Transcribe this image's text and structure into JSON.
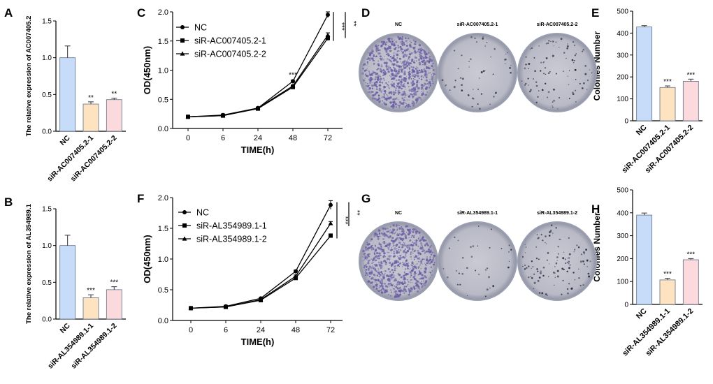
{
  "colors": {
    "nc": "#c6dcf8",
    "si1": "#fde3c0",
    "si2": "#fcd9dc",
    "barEdge": "#5f6f86",
    "plate": "#9aa0b2",
    "plateDots": "#6b5fa5"
  },
  "panel_letters": [
    "A",
    "B",
    "C",
    "D",
    "E",
    "F",
    "G",
    "H"
  ],
  "chart_data": [
    {
      "id": "A",
      "type": "bar",
      "ylabel": "The relative expression of AC007405.2",
      "categories": [
        "NC",
        "siR-AC007405.2-1",
        "siR-AC007405.2-2"
      ],
      "values": [
        1.0,
        0.37,
        0.43
      ],
      "errors": [
        0.16,
        0.03,
        0.02
      ],
      "annotations": [
        "",
        "**",
        "**"
      ],
      "ylim": [
        0,
        1.5
      ],
      "yticks": [
        "0.0",
        "0.5",
        "1.0",
        "1.5"
      ],
      "ytick_values": [
        0,
        0.5,
        1.0,
        1.5
      ]
    },
    {
      "id": "B",
      "type": "bar",
      "ylabel": "The relative expression of AL354989.1",
      "categories": [
        "NC",
        "siR-AL354989.1-1",
        "siR-AL354989.1-2"
      ],
      "values": [
        1.0,
        0.29,
        0.4
      ],
      "errors": [
        0.14,
        0.04,
        0.04
      ],
      "annotations": [
        "",
        "***",
        "***"
      ],
      "ylim": [
        0,
        1.5
      ],
      "yticks": [
        "0.0",
        "0.5",
        "1.0",
        "1.5"
      ],
      "ytick_values": [
        0,
        0.5,
        1.0,
        1.5
      ]
    },
    {
      "id": "C",
      "type": "line",
      "xlabel": "TIME(h)",
      "ylabel": "OD(450nm)",
      "x": [
        0,
        6,
        24,
        48,
        72
      ],
      "xticks": [
        "0",
        "6",
        "24",
        "48",
        "72"
      ],
      "series": [
        {
          "name": "NC",
          "marker": "circle",
          "values": [
            0.2,
            0.23,
            0.35,
            0.81,
            1.95
          ],
          "errors": [
            0.01,
            0.01,
            0.01,
            0.02,
            0.05
          ]
        },
        {
          "name": "siR-AC007405.2-1",
          "marker": "square",
          "values": [
            0.2,
            0.22,
            0.34,
            0.71,
            1.55
          ],
          "errors": [
            0.01,
            0.01,
            0.01,
            0.02,
            0.04
          ]
        },
        {
          "name": "siR-AC007405.2-2",
          "marker": "triangle",
          "values": [
            0.2,
            0.22,
            0.35,
            0.73,
            1.6
          ],
          "errors": [
            0.01,
            0.01,
            0.01,
            0.02,
            0.04
          ]
        }
      ],
      "ylim": [
        0,
        2.0
      ],
      "yticks": [
        "0.0",
        "0.5",
        "1.0",
        "1.5",
        "2.0"
      ],
      "ytick_values": [
        0,
        0.5,
        1.0,
        1.5,
        2.0
      ],
      "annotations": [
        {
          "text": "***",
          "x": 48
        }
      ],
      "brackets": [
        "***",
        "**"
      ],
      "legend": "top-left"
    },
    {
      "id": "F",
      "type": "line",
      "xlabel": "TIME(h)",
      "ylabel": "OD(450nm)",
      "x": [
        0,
        6,
        24,
        48,
        72
      ],
      "xticks": [
        "0",
        "6",
        "24",
        "48",
        "72"
      ],
      "series": [
        {
          "name": "NC",
          "marker": "circle",
          "values": [
            0.2,
            0.23,
            0.36,
            0.8,
            1.88
          ],
          "errors": [
            0.01,
            0.01,
            0.01,
            0.02,
            0.07
          ]
        },
        {
          "name": "siR-AL354989.1-1",
          "marker": "square",
          "values": [
            0.2,
            0.22,
            0.33,
            0.69,
            1.38
          ],
          "errors": [
            0.01,
            0.01,
            0.01,
            0.02,
            0.03
          ]
        },
        {
          "name": "siR-AL354989.1-2",
          "marker": "triangle",
          "values": [
            0.2,
            0.22,
            0.34,
            0.72,
            1.58
          ],
          "errors": [
            0.01,
            0.01,
            0.01,
            0.02,
            0.03
          ]
        }
      ],
      "ylim": [
        0,
        2.0
      ],
      "yticks": [
        "0.0",
        "0.5",
        "1.0",
        "1.5",
        "2.0"
      ],
      "ytick_values": [
        0,
        0.5,
        1.0,
        1.5,
        2.0
      ],
      "brackets": [
        "***",
        "**"
      ],
      "legend": "top-left"
    },
    {
      "id": "E",
      "type": "bar",
      "ylabel": "Colonies Number",
      "categories": [
        "NC",
        "siR-AC007405.2-1",
        "siR-AC007405.2-2"
      ],
      "values": [
        428,
        152,
        180
      ],
      "errors": [
        6,
        7,
        10
      ],
      "annotations": [
        "",
        "***",
        "***"
      ],
      "ylim": [
        0,
        500
      ],
      "yticks": [
        "0",
        "100",
        "200",
        "300",
        "400",
        "500"
      ],
      "ytick_values": [
        0,
        100,
        200,
        300,
        400,
        500
      ]
    },
    {
      "id": "H",
      "type": "bar",
      "ylabel": "Colonies Number",
      "categories": [
        "NC",
        "siR-AL354989.1-1",
        "siR-AL354989.1-2"
      ],
      "values": [
        390,
        107,
        195
      ],
      "errors": [
        9,
        7,
        5
      ],
      "annotations": [
        "",
        "***",
        "***"
      ],
      "ylim": [
        0,
        500
      ],
      "yticks": [
        "0",
        "100",
        "200",
        "300",
        "400",
        "500"
      ],
      "ytick_values": [
        0,
        100,
        200,
        300,
        400,
        500
      ]
    }
  ],
  "plates": [
    {
      "id": "D",
      "labels": [
        "NC",
        "siR-AC007405.2-1",
        "siR-AC007405.2-2"
      ],
      "density": [
        1.0,
        0.05,
        0.09
      ]
    },
    {
      "id": "G",
      "labels": [
        "NC",
        "siR-AL354989.1-1",
        "siR-AL354989.1-2"
      ],
      "density": [
        1.0,
        0.03,
        0.12
      ]
    }
  ]
}
